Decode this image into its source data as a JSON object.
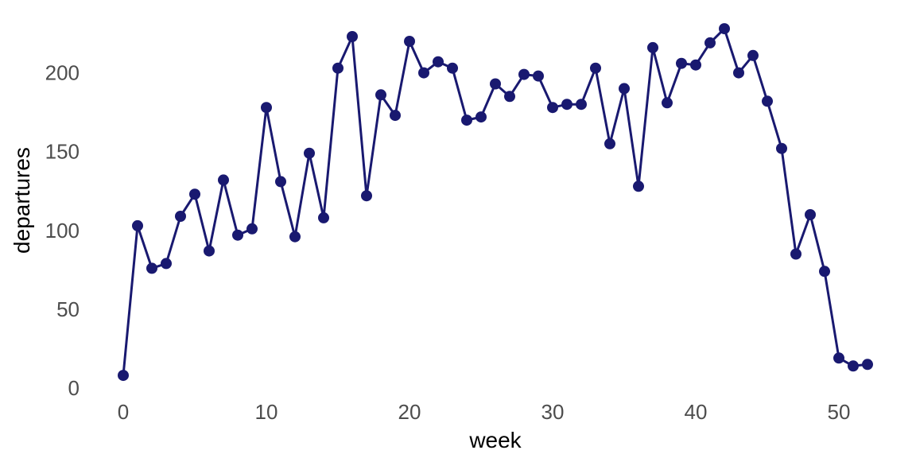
{
  "figure": {
    "background_color": "#ffffff"
  },
  "chart_data": {
    "type": "line",
    "title": "",
    "xlabel": "week",
    "ylabel": "departures",
    "x": [
      0,
      1,
      2,
      3,
      4,
      5,
      6,
      7,
      8,
      9,
      10,
      11,
      12,
      13,
      14,
      15,
      16,
      17,
      18,
      19,
      20,
      21,
      22,
      23,
      24,
      25,
      26,
      27,
      28,
      29,
      30,
      31,
      32,
      33,
      34,
      35,
      36,
      37,
      38,
      39,
      40,
      41,
      42,
      43,
      44,
      45,
      46,
      47,
      48,
      49,
      50,
      51,
      52
    ],
    "values": [
      8,
      103,
      76,
      79,
      109,
      123,
      87,
      132,
      97,
      101,
      178,
      131,
      96,
      149,
      108,
      203,
      223,
      122,
      186,
      173,
      220,
      200,
      207,
      203,
      170,
      172,
      193,
      185,
      199,
      198,
      178,
      180,
      180,
      203,
      155,
      190,
      128,
      216,
      181,
      206,
      205,
      219,
      228,
      200,
      211,
      182,
      152,
      85,
      110,
      74,
      19,
      14,
      15
    ],
    "x_ticks": [
      0,
      10,
      20,
      30,
      40,
      50
    ],
    "y_ticks": [
      0,
      50,
      100,
      150,
      200
    ],
    "xlim": [
      0,
      52
    ],
    "ylim": [
      0,
      230
    ],
    "grid": false,
    "legend_position": "none",
    "line_color": "#191970",
    "point_color": "#191970",
    "tick_label_color": "#4d4d4d",
    "axis_title_color": "#000000"
  }
}
